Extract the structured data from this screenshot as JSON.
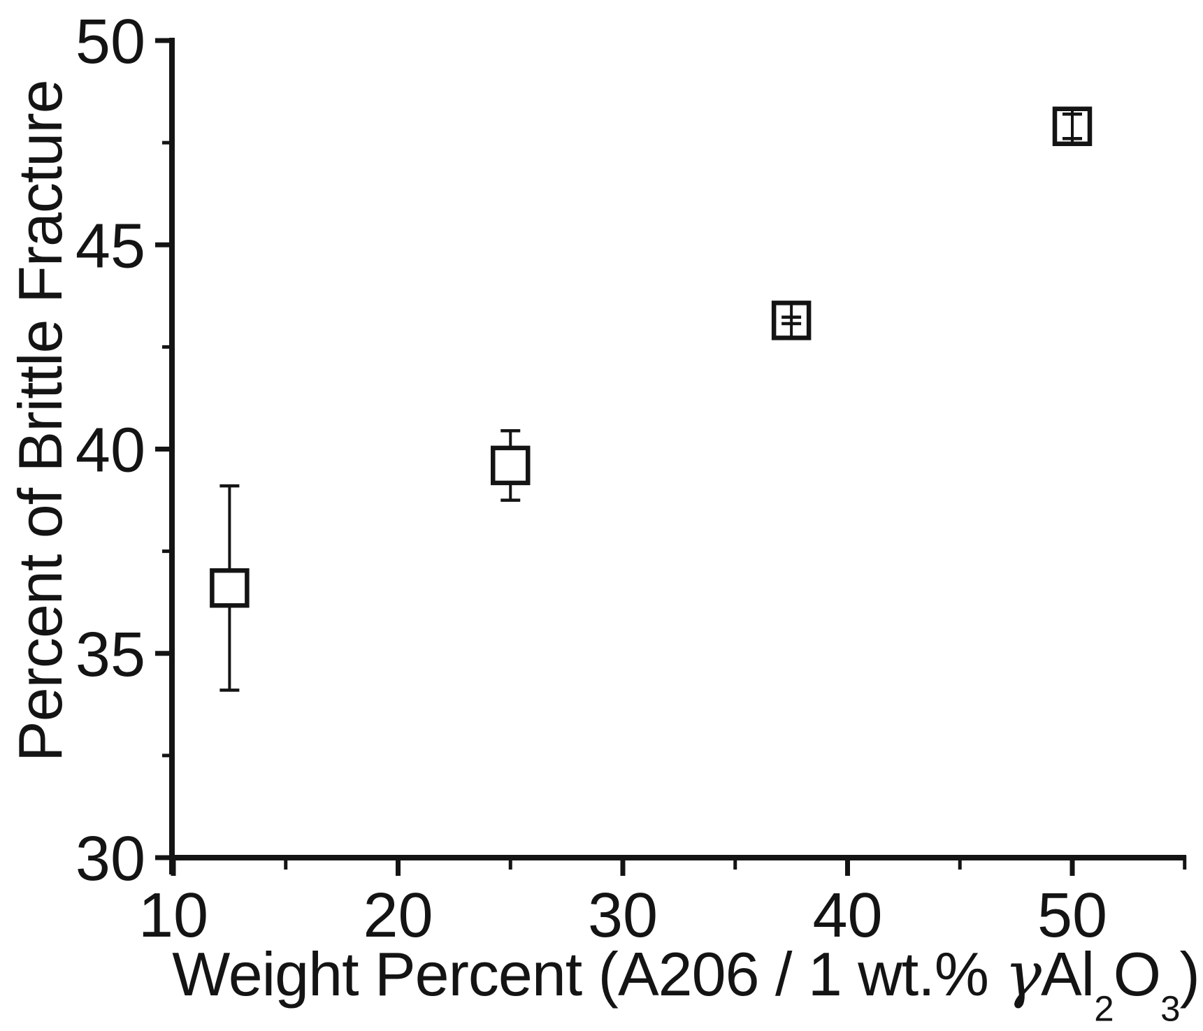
{
  "figure": {
    "background": "#ffffff",
    "ink": "#141414"
  },
  "chart_data": {
    "type": "scatter",
    "title": "",
    "ylabel": "Percent of Brittle Fracture",
    "xlabel_parts": [
      {
        "text": "Weight Percent (A206 / 1 wt.% "
      },
      {
        "text": "γ",
        "style": "gamma"
      },
      {
        "text": "Al"
      },
      {
        "text": "2",
        "style": "sub"
      },
      {
        "text": "O"
      },
      {
        "text": "3",
        "style": "sub"
      },
      {
        "text": ")"
      }
    ],
    "xlim": [
      10,
      55
    ],
    "ylim": [
      30,
      50
    ],
    "x_ticks_major": [
      10,
      20,
      30,
      40,
      50
    ],
    "x_ticks_minor": [
      15,
      25,
      35,
      45,
      55
    ],
    "y_ticks_major": [
      30,
      35,
      40,
      45,
      50
    ],
    "y_ticks_minor": [
      32.5,
      37.5,
      42.5,
      47.5
    ],
    "grid": false,
    "legend": false,
    "series": [
      {
        "name": "percent-brittle-fracture",
        "marker": "open-square",
        "points": [
          {
            "x": 12.5,
            "y": 36.6,
            "err": 2.5
          },
          {
            "x": 25,
            "y": 39.6,
            "err": 0.85
          },
          {
            "x": 37.5,
            "y": 43.15,
            "err": 0.08
          },
          {
            "x": 50,
            "y": 47.9,
            "err": 0.3
          }
        ]
      }
    ]
  }
}
